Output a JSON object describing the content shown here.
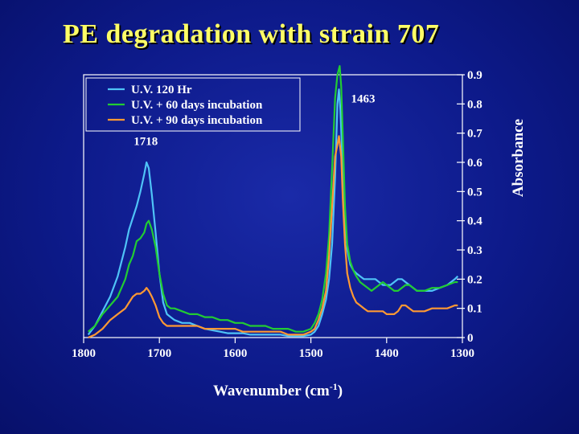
{
  "slide": {
    "title": "PE degradation with strain 707"
  },
  "chart_data": {
    "type": "line",
    "xlabel": "Wavenumber (cm",
    "xlabel_sup": "-1",
    "xlabel_close": ")",
    "ylabel": "Absorbance",
    "xlim": [
      1800,
      1300
    ],
    "ylim": [
      0,
      0.9
    ],
    "x_ticks": [
      "1800",
      "1700",
      "1600",
      "1500",
      "1400",
      "1300"
    ],
    "y_ticks": [
      "0",
      "0.1",
      "0.2",
      "0.3",
      "0.4",
      "0.5",
      "0.6",
      "0.7",
      "0.8",
      "0.9"
    ],
    "grid": false,
    "legend_position": "top-left",
    "annotations": [
      {
        "text": "1718",
        "x": 1718,
        "y": 0.62
      },
      {
        "text": "1463",
        "x": 1463,
        "y": 0.8
      }
    ],
    "series": [
      {
        "name": "U.V. 120 Hr",
        "color": "#4fc3f7",
        "x": [
          1794,
          1785,
          1775,
          1765,
          1755,
          1745,
          1740,
          1735,
          1730,
          1725,
          1720,
          1717,
          1714,
          1710,
          1705,
          1700,
          1695,
          1690,
          1685,
          1680,
          1670,
          1660,
          1650,
          1640,
          1630,
          1620,
          1610,
          1600,
          1590,
          1580,
          1570,
          1560,
          1550,
          1540,
          1530,
          1520,
          1510,
          1500,
          1495,
          1490,
          1485,
          1480,
          1476,
          1472,
          1468,
          1465,
          1463,
          1461,
          1458,
          1455,
          1452,
          1448,
          1444,
          1440,
          1435,
          1430,
          1425,
          1420,
          1415,
          1410,
          1405,
          1400,
          1395,
          1390,
          1385,
          1380,
          1375,
          1370,
          1365,
          1360,
          1350,
          1340,
          1330,
          1320,
          1310,
          1306
        ],
        "y": [
          0.01,
          0.04,
          0.09,
          0.14,
          0.21,
          0.31,
          0.37,
          0.41,
          0.45,
          0.5,
          0.56,
          0.6,
          0.58,
          0.49,
          0.36,
          0.22,
          0.12,
          0.08,
          0.07,
          0.06,
          0.05,
          0.05,
          0.04,
          0.03,
          0.025,
          0.02,
          0.015,
          0.015,
          0.015,
          0.01,
          0.01,
          0.01,
          0.01,
          0.01,
          0.005,
          0.005,
          0.005,
          0.01,
          0.02,
          0.04,
          0.08,
          0.13,
          0.2,
          0.32,
          0.55,
          0.8,
          0.85,
          0.78,
          0.58,
          0.4,
          0.3,
          0.25,
          0.23,
          0.22,
          0.21,
          0.2,
          0.2,
          0.2,
          0.2,
          0.19,
          0.18,
          0.18,
          0.18,
          0.19,
          0.2,
          0.2,
          0.19,
          0.18,
          0.17,
          0.16,
          0.16,
          0.16,
          0.17,
          0.18,
          0.2,
          0.21
        ]
      },
      {
        "name": "U.V. + 60 days incubation",
        "color": "#22cc33",
        "x": [
          1794,
          1785,
          1775,
          1765,
          1755,
          1745,
          1740,
          1735,
          1730,
          1725,
          1720,
          1717,
          1714,
          1710,
          1705,
          1700,
          1695,
          1690,
          1685,
          1680,
          1670,
          1660,
          1650,
          1640,
          1630,
          1620,
          1610,
          1600,
          1590,
          1580,
          1570,
          1560,
          1550,
          1540,
          1530,
          1520,
          1510,
          1500,
          1495,
          1490,
          1485,
          1480,
          1476,
          1472,
          1468,
          1465,
          1462,
          1460,
          1458,
          1455,
          1452,
          1448,
          1444,
          1440,
          1435,
          1430,
          1425,
          1420,
          1415,
          1410,
          1405,
          1400,
          1395,
          1390,
          1385,
          1380,
          1375,
          1370,
          1365,
          1360,
          1350,
          1340,
          1330,
          1320,
          1310,
          1306
        ],
        "y": [
          0.02,
          0.04,
          0.08,
          0.11,
          0.14,
          0.2,
          0.25,
          0.28,
          0.33,
          0.34,
          0.36,
          0.39,
          0.4,
          0.37,
          0.31,
          0.22,
          0.15,
          0.11,
          0.1,
          0.1,
          0.09,
          0.08,
          0.08,
          0.07,
          0.07,
          0.06,
          0.06,
          0.05,
          0.05,
          0.04,
          0.04,
          0.04,
          0.03,
          0.03,
          0.03,
          0.02,
          0.02,
          0.03,
          0.05,
          0.08,
          0.13,
          0.22,
          0.35,
          0.58,
          0.82,
          0.9,
          0.93,
          0.86,
          0.7,
          0.45,
          0.32,
          0.26,
          0.23,
          0.21,
          0.19,
          0.18,
          0.17,
          0.16,
          0.17,
          0.18,
          0.19,
          0.18,
          0.17,
          0.16,
          0.16,
          0.17,
          0.18,
          0.18,
          0.17,
          0.16,
          0.16,
          0.17,
          0.17,
          0.18,
          0.19,
          0.19
        ]
      },
      {
        "name": "U.V. + 90 days incubation",
        "color": "#ff9933",
        "x": [
          1794,
          1785,
          1775,
          1765,
          1755,
          1745,
          1740,
          1735,
          1730,
          1725,
          1720,
          1717,
          1714,
          1710,
          1705,
          1700,
          1695,
          1690,
          1685,
          1680,
          1670,
          1660,
          1650,
          1640,
          1630,
          1620,
          1610,
          1600,
          1590,
          1580,
          1570,
          1560,
          1550,
          1540,
          1530,
          1520,
          1510,
          1500,
          1495,
          1490,
          1485,
          1480,
          1476,
          1472,
          1468,
          1465,
          1463,
          1460,
          1458,
          1455,
          1452,
          1448,
          1444,
          1440,
          1435,
          1430,
          1425,
          1420,
          1415,
          1410,
          1405,
          1400,
          1395,
          1390,
          1385,
          1380,
          1375,
          1370,
          1365,
          1360,
          1350,
          1340,
          1330,
          1320,
          1310,
          1306
        ],
        "y": [
          0.0,
          0.01,
          0.03,
          0.06,
          0.08,
          0.1,
          0.12,
          0.14,
          0.15,
          0.15,
          0.16,
          0.17,
          0.16,
          0.14,
          0.11,
          0.07,
          0.05,
          0.04,
          0.04,
          0.04,
          0.04,
          0.04,
          0.04,
          0.03,
          0.03,
          0.03,
          0.03,
          0.03,
          0.02,
          0.02,
          0.02,
          0.02,
          0.02,
          0.02,
          0.01,
          0.01,
          0.01,
          0.02,
          0.03,
          0.06,
          0.1,
          0.16,
          0.28,
          0.45,
          0.62,
          0.66,
          0.69,
          0.62,
          0.48,
          0.32,
          0.22,
          0.17,
          0.14,
          0.12,
          0.11,
          0.1,
          0.09,
          0.09,
          0.09,
          0.09,
          0.09,
          0.08,
          0.08,
          0.08,
          0.09,
          0.11,
          0.11,
          0.1,
          0.09,
          0.09,
          0.09,
          0.1,
          0.1,
          0.1,
          0.11,
          0.11
        ]
      }
    ]
  }
}
